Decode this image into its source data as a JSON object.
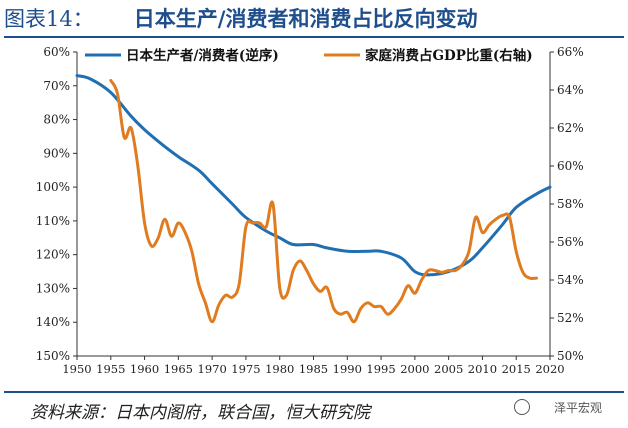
{
  "header": {
    "label": "图表14：",
    "title": "日本生产/消费者和消费占比反向变动"
  },
  "footer": {
    "source": "资料来源：日本内阁府，联合国，恒大研究院",
    "watermark": "泽平宏观"
  },
  "colors": {
    "blue": "#1f6fb2",
    "orange": "#e07b20",
    "header": "#1f4e8c"
  },
  "chart_data": {
    "type": "line",
    "xlim": [
      1950,
      2020
    ],
    "x_ticks": [
      1950,
      1955,
      1960,
      1965,
      1970,
      1975,
      1980,
      1985,
      1990,
      1995,
      2000,
      2005,
      2010,
      2015,
      2020
    ],
    "left_axis": {
      "ticks": [
        "60%",
        "70%",
        "80%",
        "90%",
        "100%",
        "110%",
        "120%",
        "130%",
        "140%",
        "150%"
      ],
      "range": [
        60,
        150
      ],
      "reversed": true
    },
    "right_axis": {
      "ticks": [
        "50%",
        "52%",
        "54%",
        "56%",
        "58%",
        "60%",
        "62%",
        "64%",
        "66%"
      ],
      "range": [
        50,
        66
      ]
    },
    "legend": "top",
    "series": [
      {
        "name": "日本生产者/消费者(逆序)",
        "axis": "left",
        "color": "#1f6fb2",
        "x": [
          1950,
          1952,
          1955,
          1958,
          1960,
          1963,
          1965,
          1968,
          1970,
          1973,
          1975,
          1978,
          1980,
          1982,
          1985,
          1987,
          1990,
          1993,
          1995,
          1998,
          2000,
          2002,
          2005,
          2008,
          2010,
          2013,
          2015,
          2018,
          2020
        ],
        "y": [
          67,
          68,
          72,
          79,
          83,
          88,
          91,
          95,
          99,
          105,
          109,
          113,
          115,
          117,
          117,
          118,
          119,
          119,
          119,
          121,
          125,
          126,
          125,
          122,
          118,
          111,
          106,
          102,
          100
        ]
      },
      {
        "name": "家庭消费占GDP比重(右轴)",
        "axis": "right",
        "color": "#e07b20",
        "x": [
          1955,
          1956,
          1957,
          1958,
          1959,
          1960,
          1961,
          1962,
          1963,
          1964,
          1965,
          1966,
          1967,
          1968,
          1969,
          1970,
          1971,
          1972,
          1973,
          1974,
          1975,
          1976,
          1977,
          1978,
          1979,
          1980,
          1981,
          1982,
          1983,
          1984,
          1985,
          1986,
          1987,
          1988,
          1989,
          1990,
          1991,
          1992,
          1993,
          1994,
          1995,
          1996,
          1997,
          1998,
          1999,
          2000,
          2001,
          2002,
          2003,
          2004,
          2005,
          2006,
          2007,
          2008,
          2009,
          2010,
          2011,
          2012,
          2013,
          2014,
          2015,
          2016,
          2017,
          2018
        ],
        "y": [
          64.5,
          63.8,
          61.5,
          62,
          60,
          57,
          55.8,
          56.2,
          57.2,
          56.3,
          57,
          56.5,
          55.5,
          53.8,
          52.8,
          51.8,
          52.7,
          53.2,
          53.1,
          53.8,
          56.8,
          57,
          57,
          56.8,
          58,
          53.6,
          53.2,
          54.5,
          55,
          54.5,
          53.8,
          53.4,
          53.6,
          52.5,
          52.2,
          52.3,
          51.8,
          52.5,
          52.8,
          52.6,
          52.6,
          52.2,
          52.5,
          53,
          53.7,
          53.3,
          54.0,
          54.5,
          54.5,
          54.4,
          54.5,
          54.5,
          54.8,
          55.5,
          57.3,
          56.5,
          56.9,
          57.2,
          57.4,
          57.3,
          55.5,
          54.4,
          54.1,
          54.1
        ]
      }
    ]
  }
}
